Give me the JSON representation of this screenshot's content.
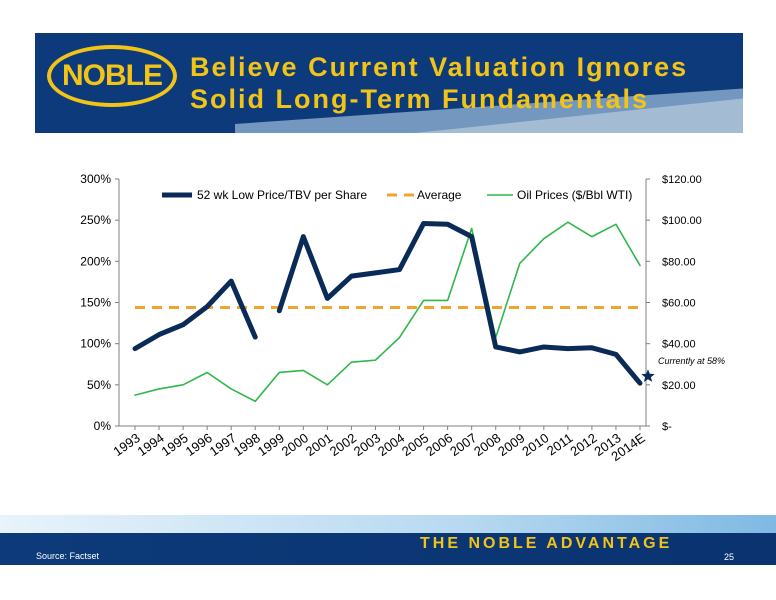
{
  "header": {
    "logo_text": "NOBLE",
    "title_line1": "Believe Current Valuation Ignores",
    "title_line2": "Solid Long-Term Fundamentals"
  },
  "footer": {
    "source": "Source: Factset",
    "tagline": "THE NOBLE ADVANTAGE",
    "page_number": "25"
  },
  "colors": {
    "navy": "#0d3a7a",
    "gold": "#f2c418",
    "price_line": "#0a2a57",
    "average_line": "#f0a42e",
    "oil_line": "#2fb84a"
  },
  "chart_data": {
    "type": "line",
    "categories": [
      "1993",
      "1994",
      "1995",
      "1996",
      "1997",
      "1998",
      "1999",
      "2000",
      "2001",
      "2002",
      "2003",
      "2004",
      "2005",
      "2006",
      "2007",
      "2008",
      "2009",
      "2010",
      "2011",
      "2012",
      "2013",
      "2014E"
    ],
    "legend": {
      "placement": "top"
    },
    "y_left": {
      "ticks": [
        "0%",
        "50%",
        "100%",
        "150%",
        "200%",
        "250%",
        "300%"
      ],
      "range": [
        0,
        300
      ],
      "unit": "percent"
    },
    "y_right": {
      "ticks": [
        "$-",
        "$20.00",
        "$40.00",
        "$60.00",
        "$80.00",
        "$100.00",
        "$120.00"
      ],
      "range": [
        0,
        120
      ],
      "unit": "dollars"
    },
    "series": [
      {
        "name": "52 wk Low Price/TBV per Share",
        "axis": "left",
        "values": [
          94,
          111,
          123,
          145,
          176,
          108,
          140,
          230,
          155,
          182,
          186,
          190,
          246,
          245,
          230,
          96,
          90,
          96,
          94,
          95,
          87,
          52
        ],
        "gaps_after": [
          5
        ]
      },
      {
        "name": "Average",
        "axis": "left",
        "style": "dashed",
        "values": [
          144,
          144,
          144,
          144,
          144,
          144,
          144,
          144,
          144,
          144,
          144,
          144,
          144,
          144,
          144,
          144,
          144,
          144,
          144,
          144,
          144,
          144
        ]
      },
      {
        "name": "Oil Prices ($/Bbl WTI)",
        "axis": "right",
        "values": [
          15,
          18,
          20,
          26,
          18,
          12,
          26,
          27,
          20,
          31,
          32,
          43,
          61,
          61,
          96,
          43,
          79,
          91,
          99,
          92,
          98,
          78
        ]
      }
    ],
    "annotation": {
      "text": "Currently at 58%",
      "category": "2014E",
      "value": 58,
      "marker": "star"
    }
  }
}
